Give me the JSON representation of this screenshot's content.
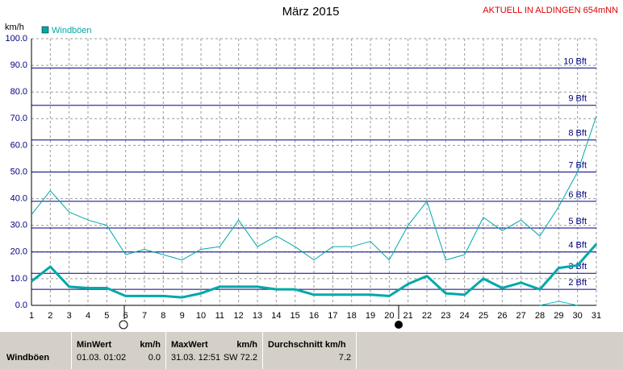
{
  "chart_data": {
    "type": "line",
    "title": "März 2015",
    "annotation": "AKTUELL IN ALDINGEN 654mNN",
    "y_label": "km/h",
    "x": [
      1,
      2,
      3,
      4,
      5,
      6,
      7,
      8,
      9,
      10,
      11,
      12,
      13,
      14,
      15,
      16,
      17,
      18,
      19,
      20,
      21,
      22,
      23,
      24,
      25,
      26,
      27,
      28,
      29,
      30,
      31
    ],
    "xlim": [
      1,
      31
    ],
    "xticks": [
      1,
      2,
      3,
      4,
      5,
      6,
      7,
      8,
      9,
      10,
      11,
      12,
      13,
      14,
      15,
      16,
      17,
      18,
      19,
      20,
      21,
      22,
      23,
      24,
      25,
      26,
      27,
      28,
      29,
      30,
      31
    ],
    "ylim": [
      0,
      100
    ],
    "yticks": [
      {
        "value": 0,
        "label": "0.0"
      },
      {
        "value": 10,
        "label": "10.0"
      },
      {
        "value": 20,
        "label": "20.0"
      },
      {
        "value": 30,
        "label": "30.0"
      },
      {
        "value": 40,
        "label": "40.0"
      },
      {
        "value": 50,
        "label": "50.0"
      },
      {
        "value": 60,
        "label": "60.0"
      },
      {
        "value": 70,
        "label": "70.0"
      },
      {
        "value": 80,
        "label": "80.0"
      },
      {
        "value": 90,
        "label": "90.0"
      },
      {
        "value": 100,
        "label": "100.0"
      }
    ],
    "grid": true,
    "beaufort": [
      {
        "value": 6,
        "label": "2 Bft"
      },
      {
        "value": 12,
        "label": "3 Bft"
      },
      {
        "value": 20,
        "label": "4 Bft"
      },
      {
        "value": 29,
        "label": "5 Bft"
      },
      {
        "value": 39,
        "label": "6 Bft"
      },
      {
        "value": 50,
        "label": "7 Bft"
      },
      {
        "value": 62,
        "label": "8 Bft"
      },
      {
        "value": 75,
        "label": "9 Bft"
      },
      {
        "value": 89,
        "label": "10 Bft"
      }
    ],
    "beaufort_color": "#000080",
    "series": [
      {
        "name": "Windböen",
        "color": "#00a8a8",
        "width": 1,
        "values": [
          34,
          43,
          35,
          32,
          30,
          19,
          21,
          19,
          17,
          21,
          22,
          32,
          22,
          26,
          22,
          17,
          22,
          22,
          24,
          17,
          30,
          39,
          17,
          19,
          33,
          28,
          32,
          26,
          37,
          50,
          71
        ]
      },
      {
        "color": "#00a8a8",
        "width": 3,
        "values": [
          9,
          14.5,
          7,
          6.5,
          6.5,
          3.5,
          3.5,
          3.5,
          3,
          4.5,
          7,
          7,
          7,
          6,
          6,
          4,
          4,
          4,
          4,
          3.5,
          8,
          11,
          4.5,
          4,
          10,
          6.5,
          8.5,
          6,
          14,
          15,
          23
        ]
      },
      {
        "color": "#00c8c8",
        "width": 1,
        "values": [
          null,
          null,
          null,
          null,
          null,
          null,
          null,
          null,
          null,
          null,
          null,
          null,
          null,
          null,
          null,
          null,
          null,
          null,
          null,
          null,
          null,
          null,
          null,
          null,
          null,
          null,
          null,
          0,
          1.5,
          0,
          null
        ]
      }
    ]
  },
  "table": {
    "header": [
      "MinWert",
      "km/h",
      "MaxWert",
      "km/h",
      "Durchschnitt km/h"
    ],
    "rows": [
      [
        "Windböen",
        "01.03.  01:02",
        "0.0",
        "31.03.  12:51",
        "SW 72.2",
        "7.2"
      ]
    ]
  }
}
